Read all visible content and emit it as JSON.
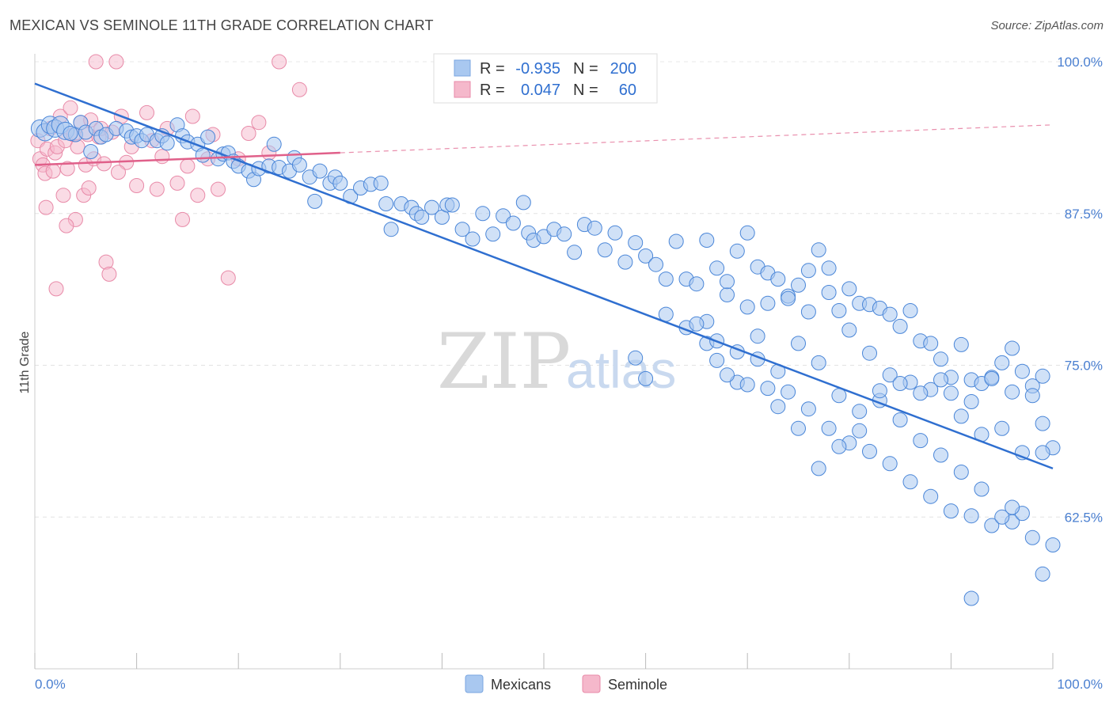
{
  "title": "MEXICAN VS SEMINOLE 11TH GRADE CORRELATION CHART",
  "source": "Source: ZipAtlas.com",
  "chart_data": {
    "type": "scatter",
    "title": "MEXICAN VS SEMINOLE 11TH GRADE CORRELATION CHART",
    "xlabel": "",
    "ylabel": "11th Grade",
    "xlim": [
      0,
      100
    ],
    "ylim": [
      50,
      100
    ],
    "x_tick_labels": [
      "0.0%",
      "100.0%"
    ],
    "y_ticks": [
      62.5,
      75.0,
      87.5,
      100.0
    ],
    "y_tick_labels": [
      "62.5%",
      "75.0%",
      "87.5%",
      "100.0%"
    ],
    "grid": true,
    "legend": {
      "position": "top-center",
      "rows": [
        {
          "r_label": "R =",
          "r_value": "-0.935",
          "n_label": "N =",
          "n_value": "200",
          "color": "#a9c8f0"
        },
        {
          "r_label": "R =",
          "r_value": "0.047",
          "n_label": "N =",
          "n_value": "60",
          "color": "#f5b8cb"
        }
      ]
    },
    "bottom_legend": [
      {
        "name": "Mexicans",
        "color": "#a9c8f0"
      },
      {
        "name": "Seminole",
        "color": "#f5b8cb"
      }
    ],
    "watermark": {
      "zip": "ZIP",
      "atlas": "atlas"
    },
    "series": [
      {
        "name": "Mexicans",
        "color": "#a9c8f0",
        "stroke": "#4a86d8",
        "trend": {
          "x0": 0,
          "y0": 98.2,
          "x1": 100,
          "y1": 66.5,
          "color": "#2f6fd0"
        },
        "points": [
          [
            0.5,
            94.5
          ],
          [
            1,
            94.2
          ],
          [
            1.5,
            94.8
          ],
          [
            2,
            94.5
          ],
          [
            2.5,
            94.8
          ],
          [
            3,
            94.3
          ],
          [
            4,
            94
          ],
          [
            4.5,
            95
          ],
          [
            5,
            94.2
          ],
          [
            6,
            94.5
          ],
          [
            6.5,
            93.8
          ],
          [
            7,
            94
          ],
          [
            8,
            94.5
          ],
          [
            9,
            94.3
          ],
          [
            9.5,
            93.8
          ],
          [
            10,
            93.9
          ],
          [
            10.5,
            93.5
          ],
          [
            11,
            94
          ],
          [
            12,
            93.5
          ],
          [
            12.5,
            93.9
          ],
          [
            13,
            93.3
          ],
          [
            14,
            94.8
          ],
          [
            14.5,
            93.9
          ],
          [
            15,
            93.4
          ],
          [
            16,
            93.2
          ],
          [
            16.5,
            92.3
          ],
          [
            17,
            93.8
          ],
          [
            18,
            92
          ],
          [
            18.5,
            92.4
          ],
          [
            19,
            92.5
          ],
          [
            19.5,
            91.8
          ],
          [
            20,
            91.4
          ],
          [
            21,
            91
          ],
          [
            21.5,
            90.3
          ],
          [
            22,
            91.2
          ],
          [
            23,
            91.4
          ],
          [
            23.5,
            93.2
          ],
          [
            24,
            91.3
          ],
          [
            25,
            91
          ],
          [
            25.5,
            92.1
          ],
          [
            26,
            91.5
          ],
          [
            27,
            90.5
          ],
          [
            27.5,
            88.5
          ],
          [
            28,
            91
          ],
          [
            29,
            90
          ],
          [
            29.5,
            90.5
          ],
          [
            30,
            90
          ],
          [
            31,
            88.9
          ],
          [
            32,
            89.6
          ],
          [
            33,
            89.9
          ],
          [
            34,
            90
          ],
          [
            34.5,
            88.3
          ],
          [
            35,
            86.2
          ],
          [
            36,
            88.3
          ],
          [
            37,
            88
          ],
          [
            37.5,
            87.5
          ],
          [
            38,
            87.2
          ],
          [
            39,
            88
          ],
          [
            40,
            87.2
          ],
          [
            40.5,
            88.2
          ],
          [
            41,
            88.2
          ],
          [
            42,
            86.2
          ],
          [
            43,
            85.4
          ],
          [
            44,
            87.5
          ],
          [
            45,
            85.8
          ],
          [
            46,
            87.3
          ],
          [
            47,
            86.7
          ],
          [
            48,
            88.4
          ],
          [
            48.5,
            85.9
          ],
          [
            49,
            85.3
          ],
          [
            50,
            85.6
          ],
          [
            51,
            86.2
          ],
          [
            52,
            85.8
          ],
          [
            53,
            84.3
          ],
          [
            54,
            86.6
          ],
          [
            55,
            86.3
          ],
          [
            56,
            84.5
          ],
          [
            57,
            85.9
          ],
          [
            58,
            83.5
          ],
          [
            59,
            85.1
          ],
          [
            60,
            84
          ],
          [
            61,
            83.3
          ],
          [
            62,
            82.1
          ],
          [
            63,
            85.2
          ],
          [
            64,
            82.1
          ],
          [
            65,
            81.7
          ],
          [
            66,
            85.3
          ],
          [
            67,
            83
          ],
          [
            68,
            80.8
          ],
          [
            69,
            84.4
          ],
          [
            70,
            85.9
          ],
          [
            71,
            83.1
          ],
          [
            72,
            82.6
          ],
          [
            73,
            82.1
          ],
          [
            74,
            80.7
          ],
          [
            75,
            81.6
          ],
          [
            76,
            82.8
          ],
          [
            77,
            84.5
          ],
          [
            78,
            83
          ],
          [
            79,
            79.5
          ],
          [
            80,
            77.9
          ],
          [
            81,
            80.1
          ],
          [
            82,
            80
          ],
          [
            83,
            79.7
          ],
          [
            84,
            79.2
          ],
          [
            85,
            78.2
          ],
          [
            86,
            79.5
          ],
          [
            87,
            77
          ],
          [
            88,
            76.8
          ],
          [
            89,
            75.5
          ],
          [
            90,
            74
          ],
          [
            91,
            76.7
          ],
          [
            92,
            73.8
          ],
          [
            93,
            73.5
          ],
          [
            94,
            74
          ],
          [
            95,
            75.2
          ],
          [
            96,
            76.4
          ],
          [
            97,
            74.5
          ],
          [
            98,
            73.3
          ],
          [
            99,
            74.1
          ],
          [
            59,
            75.6
          ],
          [
            60,
            73.9
          ],
          [
            62,
            79.2
          ],
          [
            64,
            78.1
          ],
          [
            66,
            78.6
          ],
          [
            68,
            81.9
          ],
          [
            70,
            79.8
          ],
          [
            72,
            80.1
          ],
          [
            74,
            80.5
          ],
          [
            76,
            79.4
          ],
          [
            78,
            81
          ],
          [
            80,
            81.3
          ],
          [
            82,
            76
          ],
          [
            84,
            74.2
          ],
          [
            86,
            73.6
          ],
          [
            88,
            73
          ],
          [
            90,
            72.7
          ],
          [
            92,
            72
          ],
          [
            94,
            73.9
          ],
          [
            96,
            72.8
          ],
          [
            98,
            72.5
          ],
          [
            99,
            70.2
          ],
          [
            100,
            68.2
          ],
          [
            67,
            75.4
          ],
          [
            69,
            73.6
          ],
          [
            71,
            77.4
          ],
          [
            73,
            74.5
          ],
          [
            75,
            76.8
          ],
          [
            77,
            75.2
          ],
          [
            79,
            72.5
          ],
          [
            81,
            71.2
          ],
          [
            83,
            72.1
          ],
          [
            85,
            73.5
          ],
          [
            87,
            72.7
          ],
          [
            89,
            73.8
          ],
          [
            91,
            70.8
          ],
          [
            93,
            69.3
          ],
          [
            95,
            69.8
          ],
          [
            97,
            67.8
          ],
          [
            99,
            67.8
          ],
          [
            66,
            76.8
          ],
          [
            68,
            74.2
          ],
          [
            70,
            73.4
          ],
          [
            72,
            73.1
          ],
          [
            74,
            72.8
          ],
          [
            76,
            71.4
          ],
          [
            78,
            69.8
          ],
          [
            80,
            68.6
          ],
          [
            82,
            67.9
          ],
          [
            84,
            66.9
          ],
          [
            86,
            65.4
          ],
          [
            88,
            64.2
          ],
          [
            90,
            63
          ],
          [
            92,
            62.6
          ],
          [
            94,
            61.8
          ],
          [
            96,
            62.1
          ],
          [
            98,
            60.8
          ],
          [
            100,
            60.2
          ],
          [
            65,
            78.4
          ],
          [
            67,
            77
          ],
          [
            69,
            76.1
          ],
          [
            71,
            75.5
          ],
          [
            73,
            71.6
          ],
          [
            75,
            69.8
          ],
          [
            77,
            66.5
          ],
          [
            79,
            68.3
          ],
          [
            81,
            69.6
          ],
          [
            83,
            72.9
          ],
          [
            85,
            70.5
          ],
          [
            87,
            68.8
          ],
          [
            89,
            67.6
          ],
          [
            91,
            66.2
          ],
          [
            93,
            64.8
          ],
          [
            95,
            62.5
          ],
          [
            97,
            62.8
          ],
          [
            99,
            57.8
          ],
          [
            96,
            63.3
          ],
          [
            92,
            55.8
          ],
          [
            3.5,
            94.1
          ],
          [
            5.5,
            92.6
          ]
        ]
      },
      {
        "name": "Seminole",
        "color": "#f5b8cb",
        "stroke": "#e88aa8",
        "trend": {
          "x0": 0,
          "y0": 91.5,
          "x1": 30,
          "y1": 92.5,
          "dash_x1": 100,
          "dash_y1": 94.8,
          "color": "#e0608a"
        },
        "points": [
          [
            0.3,
            93.5
          ],
          [
            0.5,
            92
          ],
          [
            0.8,
            91.5
          ],
          [
            1,
            90.8
          ],
          [
            1.2,
            92.8
          ],
          [
            1.5,
            94.5
          ],
          [
            1.8,
            91
          ],
          [
            2,
            92.5
          ],
          [
            2.2,
            93
          ],
          [
            2.5,
            95.5
          ],
          [
            2.8,
            89
          ],
          [
            3,
            93.5
          ],
          [
            3.2,
            91.2
          ],
          [
            3.5,
            96.2
          ],
          [
            3.8,
            94
          ],
          [
            4,
            87
          ],
          [
            4.2,
            93
          ],
          [
            4.5,
            95
          ],
          [
            4.8,
            89
          ],
          [
            5,
            91.5
          ],
          [
            5.2,
            94
          ],
          [
            5.5,
            95.2
          ],
          [
            5.8,
            92
          ],
          [
            6,
            100
          ],
          [
            6.3,
            93.8
          ],
          [
            6.5,
            94.5
          ],
          [
            6.8,
            91.6
          ],
          [
            7,
            83.5
          ],
          [
            7.3,
            82.5
          ],
          [
            7.6,
            94.2
          ],
          [
            8,
            100
          ],
          [
            8.5,
            95.5
          ],
          [
            9,
            91.7
          ],
          [
            9.5,
            93
          ],
          [
            10,
            89.8
          ],
          [
            11,
            95.8
          ],
          [
            11.5,
            93.5
          ],
          [
            12,
            89.5
          ],
          [
            12.5,
            92.2
          ],
          [
            13,
            94.5
          ],
          [
            14,
            90
          ],
          [
            14.5,
            87
          ],
          [
            15,
            91.4
          ],
          [
            15.5,
            95.5
          ],
          [
            16,
            89
          ],
          [
            17,
            92
          ],
          [
            17.5,
            94
          ],
          [
            18,
            89.5
          ],
          [
            19,
            82.2
          ],
          [
            20,
            92
          ],
          [
            21,
            94.1
          ],
          [
            22,
            95
          ],
          [
            23,
            92.5
          ],
          [
            24,
            100
          ],
          [
            26,
            97.7
          ],
          [
            1.1,
            88
          ],
          [
            2.1,
            81.3
          ],
          [
            3.1,
            86.5
          ],
          [
            5.3,
            89.6
          ],
          [
            8.2,
            90.9
          ]
        ]
      }
    ]
  }
}
